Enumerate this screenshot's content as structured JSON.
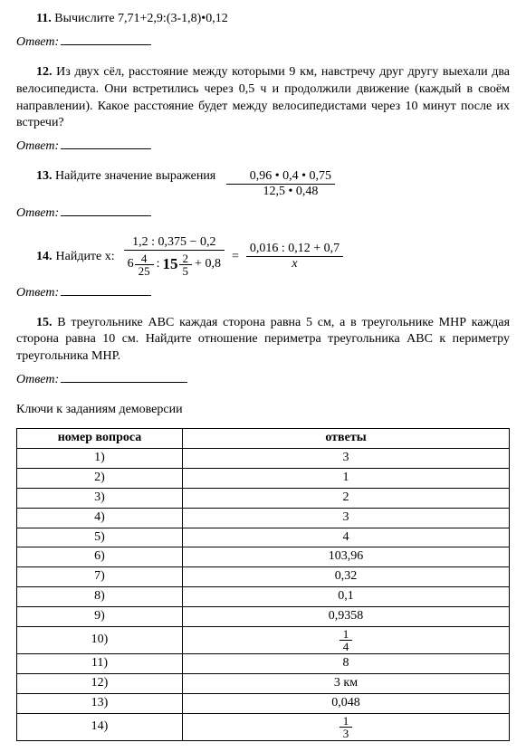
{
  "p11": {
    "num": "11.",
    "text": "Вычислите 7,71+2,9:(3-1,8)•0,12"
  },
  "p12": {
    "num": "12.",
    "text": "Из двух сёл, расстояние между которыми 9 км, навстречу друг другу выехали два велосипедиста. Они встретились через 0,5 ч и продолжили движение (каждый в своём направлении). Какое расстояние будет между велосипедистами через 10 минут после их встречи?"
  },
  "p13": {
    "num": "13.",
    "lead": "Найдите значение выражения",
    "num_expr": "0,96 • 0,4 • 0,75",
    "den_expr": "12,5 • 0,48"
  },
  "p14": {
    "num": "14.",
    "lead": "Найдите x:",
    "left_num": "1,2 : 0,375 − 0,2",
    "left_den_m1_whole": "6",
    "left_den_m1_num": "4",
    "left_den_m1_den": "25",
    "left_den_colon": ":",
    "left_den_m2_whole": "15",
    "left_den_m2_num": "2",
    "left_den_m2_den": "5",
    "left_den_tail": "+ 0,8",
    "right_num": "0,016 : 0,12 + 0,7",
    "right_den": "x"
  },
  "p15": {
    "num": "15.",
    "text": "В треугольнике АВС каждая сторона равна 5 см, а в треугольнике МНР каждая сторона равна 10 см. Найдите отношение периметра треугольника АВС к периметру треугольника МНР."
  },
  "answer_label": "Ответ:",
  "keys_title": "Ключи к заданиям демоверсии",
  "table": {
    "header_q": "номер вопроса",
    "header_a": "ответы",
    "rows": [
      {
        "q": "1)",
        "a": "3"
      },
      {
        "q": "2)",
        "a": "1"
      },
      {
        "q": "3)",
        "a": "2"
      },
      {
        "q": "4)",
        "a": "3"
      },
      {
        "q": "5)",
        "a": "4"
      },
      {
        "q": "6)",
        "a": "103,96"
      },
      {
        "q": "7)",
        "a": "0,32"
      },
      {
        "q": "8)",
        "a": "0,1"
      },
      {
        "q": "9)",
        "a": "0,9358"
      },
      {
        "q": "10)",
        "a": {
          "frac": [
            "1",
            "4"
          ]
        }
      },
      {
        "q": "11)",
        "a": "8"
      },
      {
        "q": "12)",
        "a": "3 км"
      },
      {
        "q": "13)",
        "a": "0,048"
      },
      {
        "q": "14)",
        "a": {
          "frac": [
            "1",
            "3"
          ]
        }
      }
    ]
  }
}
